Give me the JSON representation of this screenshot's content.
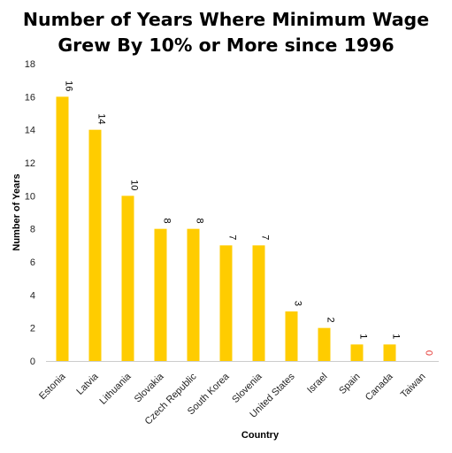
{
  "chart_data": {
    "type": "bar",
    "title": [
      "Number of Years Where Minimum Wage",
      "Grew By 10% or More since 1996"
    ],
    "xlabel": "Country",
    "ylabel": "Number of Years",
    "categories": [
      "Estonia",
      "Latvia",
      "Lithuania",
      "Slovakia",
      "Czech Republic",
      "South Korea",
      "Slovenia",
      "United States",
      "Israel",
      "Spain",
      "Canada",
      "Taiwan"
    ],
    "values": [
      16,
      14,
      10,
      8,
      8,
      7,
      7,
      3,
      2,
      1,
      1,
      0
    ],
    "data_labels": [
      "16",
      "14",
      "10",
      "8",
      "8",
      "7",
      "7",
      "3",
      "2",
      "1",
      "1",
      "0"
    ],
    "ylim": [
      0,
      18
    ],
    "yticks": [
      "0",
      "2",
      "4",
      "6",
      "8",
      "10",
      "12",
      "14",
      "16",
      "18"
    ],
    "grid": false,
    "legend": "none",
    "colors": {
      "bar": "#FFCC00",
      "label": "#000000",
      "zero_label": "#E53935",
      "axis": "#cccccc"
    }
  }
}
